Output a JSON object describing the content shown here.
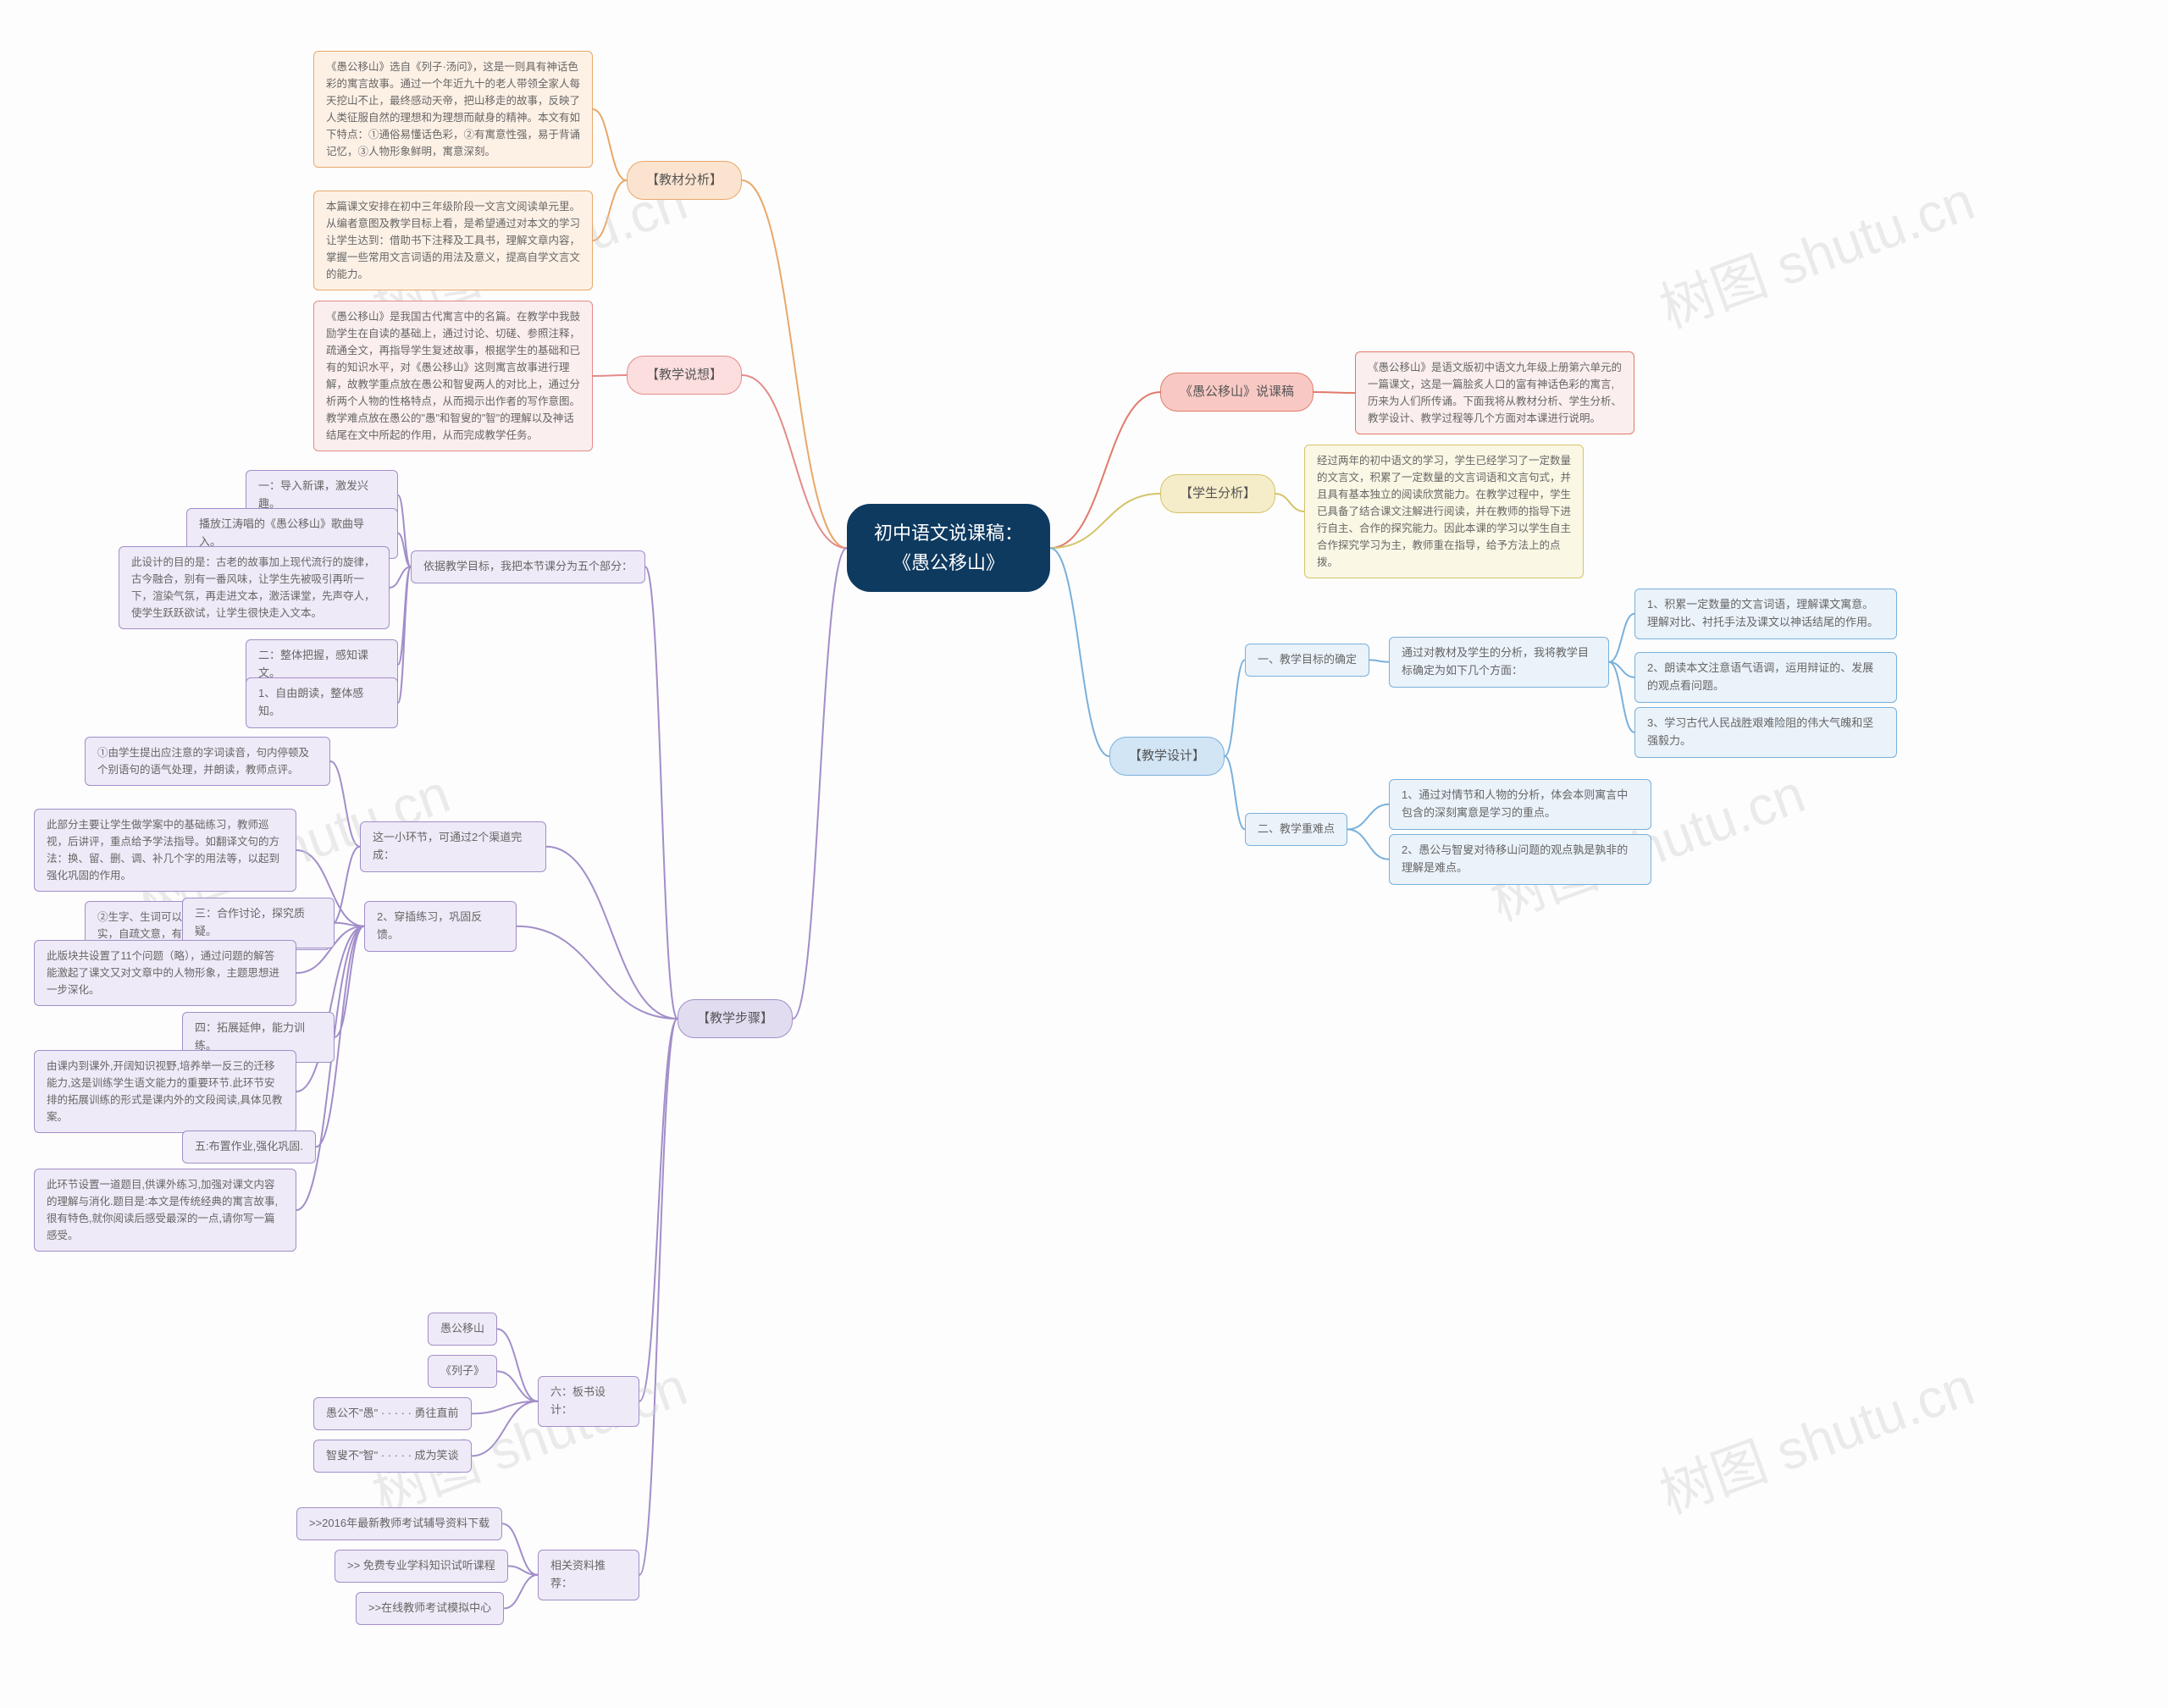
{
  "title": "初中语文说课稿：《愚公移山》",
  "watermark": "树图 shutu.cn",
  "palette": {
    "root_bg": "#0e3a60",
    "root_text": "#ffffff",
    "orange_bg": "#fbe3cf",
    "orange_border": "#e8a86a",
    "pink_bg": "#fcdede",
    "pink_border": "#e48a8a",
    "red_bg": "#f8c9c4",
    "red_border": "#e07a6a",
    "yellow_bg": "#f5ecc9",
    "yellow_border": "#d4c36a",
    "violet_bg": "#e2dcf0",
    "violet_border": "#a28ec9",
    "blue_bg": "#d2e5f5",
    "blue_border": "#7ab0db",
    "leaf_pink": "#fbeeee",
    "leaf_blue": "#eaf2fa",
    "leaf_violet": "#efeaf7",
    "leaf_yellow": "#fbf7e5",
    "leaf_orange": "#fdf1e6",
    "line_orange": "#e8a86a",
    "line_pink": "#e48a8a",
    "line_red": "#e07a6a",
    "line_yellow": "#d4c36a",
    "line_blue": "#7ab0db",
    "line_violet": "#a28ec9"
  },
  "branches": {
    "jiaocai": {
      "label": "【教材分析】",
      "leaves": [
        "《愚公移山》选自《列子·汤问》，这是一则具有神话色彩的寓言故事。通过一个年近九十的老人带领全家人每天挖山不止，最终感动天帝，把山移走的故事，反映了人类征服自然的理想和为理想而献身的精神。本文有如下特点：①通俗易懂话色彩，②有寓意性强，易于背诵记忆，③人物形象鲜明，寓意深刻。",
        "本篇课文安排在初中三年级阶段一文言文阅读单元里。从编者意图及教学目标上看，是希望通过对本文的学习让学生达到：借助书下注释及工具书，理解文章内容，掌握一些常用文言词语的用法及意义，提高自学文言文的能力。"
      ]
    },
    "shuoxiang": {
      "label": "【教学说想】",
      "leaves": [
        "《愚公移山》是我国古代寓言中的名篇。在教学中我鼓励学生在自读的基础上，通过讨论、切磋、参照注释，疏通全文，再指导学生复述故事，根据学生的基础和已有的知识水平，对《愚公移山》这则寓言故事进行理解，故教学重点放在愚公和智叟两人的对比上，通过分析两个人物的性格特点，从而揭示出作者的写作意图。教学难点放在愚公的\"愚\"和智叟的\"智\"的理解以及神话结尾在文中所起的作用，从而完成教学任务。"
      ]
    },
    "shuoke": {
      "label": "《愚公移山》说课稿",
      "leaves": [
        "《愚公移山》是语文版初中语文九年级上册第六单元的一篇课文，这是一篇脍炙人口的富有神话色彩的寓言,历来为人们所传诵。下面我将从教材分析、学生分析、教学设计、教学过程等几个方面对本课进行说明。"
      ]
    },
    "xuesheng": {
      "label": "【学生分析】",
      "leaves": [
        "经过两年的初中语文的学习，学生已经学习了一定数量的文言文，积累了一定数量的文言词语和文言句式，并且具有基本独立的阅读欣赏能力。在教学过程中，学生已具备了结合课文注解进行阅读，并在教师的指导下进行自主、合作的探究能力。因此本课的学习以学生自主合作探究学习为主，教师重在指导，给予方法上的点拨。"
      ]
    },
    "sheji": {
      "label": "【教学设计】",
      "sub1": {
        "label": "一、教学目标的确定",
        "desc": "通过对教材及学生的分析，我将教学目标确定为如下几个方面：",
        "items": [
          "1、积累一定数量的文言词语，理解课文寓意。理解对比、衬托手法及课文以神话结尾的作用。",
          "2、朗读本文注意语气语调，运用辩证的、发展的观点看问题。",
          "3、学习古代人民战胜艰难险阻的伟大气魄和坚强毅力。"
        ]
      },
      "sub2": {
        "label": "二、教学重难点",
        "items": [
          "1、通过对情节和人物的分析，体会本则寓言中包含的深刻寓意是学习的重点。",
          "2、愚公与智叟对待移山问题的观点孰是孰非的理解是难点。"
        ]
      }
    },
    "buzhou": {
      "label": "【教学步骤】",
      "plan": {
        "desc": "依据教学目标，我把本节课分为五个部分：",
        "item1": "一：导入新课，激发兴趣。",
        "item1a": "播放江涛唱的《愚公移山》歌曲导入。",
        "item1b": "此设计的目的是：古老的故事加上现代流行的旋律，古今融合，别有一番风味，让学生先被吸引再听一下，渲染气氛，再走进文本，激活课堂，先声夺人，使学生跃跃欲试，让学生很快走入文本。",
        "item2": "二：整体把握，感知课文。",
        "item2a": "1、自由朗读，整体感知。",
        "links_desc": "这一小环节，可通过2个渠道完成：",
        "link_a": "①由学生提出应注意的字词读音，句内停顿及个别语句的语气处理，并朗读，教师点评。",
        "link_b": "②生字、生词可以参考注释、工具书等——落实，自疏文意，有疑难之处，小组讨论解决。",
        "practice": "2、穿插练习，巩固反馈。",
        "practice_a": "此部分主要让学生做学案中的基础练习，教师巡视，后讲评，重点给予学法指导。如翻译文句的方法：换、留、删、调、补几个字的用法等，以起到强化巩固的作用。",
        "item3": "三：合作讨论，探究质疑。",
        "item3a": "此版块共设置了11个问题（略），通过问题的解答能激起了课文又对文章中的人物形象，主题思想进一步深化。",
        "item4": "四：拓展延伸，能力训练。",
        "item4a": "由课内到课外,开阔知识视野,培养举一反三的迁移能力,这是训练学生语文能力的重要环节.此环节安排的拓展训练的形式是课内外的文段阅读,具体见教案。",
        "item5": "五:布置作业,强化巩固.",
        "item5a": "此环节设置一道题目,供课外练习,加强对课文内容的理解与消化.题目是:本文是传统经典的寓言故事,很有特色,就你阅读后感受最深的一点,请你写一篇感受。"
      },
      "banshu": {
        "label": "六：板书设计：",
        "items": [
          "愚公移山",
          "《列子》",
          "愚公不\"愚\"  · · · · · 勇往直前",
          "智叟不\"智\"  · · · · · 成为笑谈"
        ]
      },
      "ziliao": {
        "label": "相关资料推荐：",
        "items": [
          ">>2016年最新教师考试辅导资料下载",
          ">> 免费专业学科知识试听课程",
          ">>在线教师考试模拟中心"
        ]
      }
    }
  }
}
